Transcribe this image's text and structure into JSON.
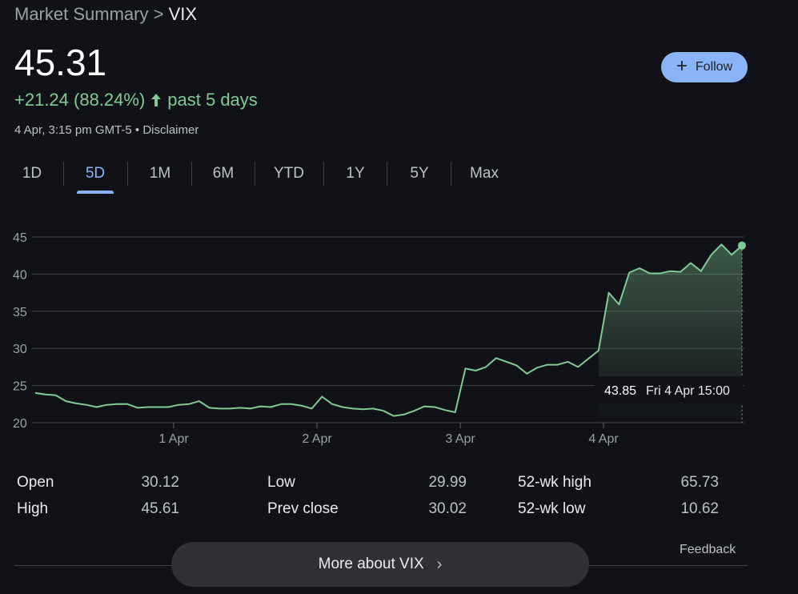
{
  "breadcrumb": {
    "parent": "Market Summary",
    "separator": " > ",
    "current": "VIX"
  },
  "quote": {
    "price": "45.31",
    "change": "+21.24 (88.24%)",
    "period": "past 5 days",
    "timestamp": "4 Apr, 3:15 pm GMT-5",
    "dot": " • ",
    "disclaimer": "Disclaimer"
  },
  "follow_button": {
    "icon": "plus-icon",
    "label": "Follow"
  },
  "tabs": [
    "1D",
    "5D",
    "1M",
    "6M",
    "YTD",
    "1Y",
    "5Y",
    "Max"
  ],
  "active_tab": "5D",
  "colors": {
    "accent": "#8ab4f8",
    "positive": "#81c995",
    "background": "#111217",
    "button_bg": "#303134"
  },
  "chart_data": {
    "type": "area",
    "x_ticks": [
      "1 Apr",
      "2 Apr",
      "3 Apr",
      "4 Apr"
    ],
    "y_ticks": [
      20,
      25,
      30,
      35,
      40,
      45
    ],
    "ylim": [
      20,
      45
    ],
    "grid": true,
    "series": [
      {
        "values": [
          24.0,
          23.8,
          23.7,
          22.9,
          22.6,
          22.4,
          22.1,
          22.4,
          22.5,
          22.5,
          22.0,
          22.1,
          22.1,
          22.1,
          22.4,
          22.5,
          22.9,
          22.0,
          21.9,
          21.9,
          22.0,
          21.9,
          22.2,
          22.1,
          22.5,
          22.5,
          22.3,
          21.9,
          23.5,
          22.5,
          22.1,
          21.9,
          21.8,
          21.9,
          21.6,
          20.9,
          21.1,
          21.6,
          22.2,
          22.1,
          21.7,
          21.4,
          27.3,
          27.0,
          27.5,
          28.7,
          28.2,
          27.7,
          26.6,
          27.4,
          27.8,
          27.8,
          28.2,
          27.5,
          28.6,
          29.7,
          37.5,
          35.9,
          40.2,
          40.8,
          40.1,
          40.1,
          40.4,
          40.3,
          41.5,
          40.4,
          42.6,
          44.0,
          42.6,
          43.85
        ]
      }
    ],
    "tooltip": {
      "value": "43.85",
      "time": "Fri 4 Apr 15:00"
    }
  },
  "stats": [
    {
      "label": "Open",
      "value": "30.12"
    },
    {
      "label": "High",
      "value": "45.61"
    },
    {
      "label": "Low",
      "value": "29.99"
    },
    {
      "label": "Prev close",
      "value": "30.02"
    },
    {
      "label": "52-wk high",
      "value": "65.73"
    },
    {
      "label": "52-wk low",
      "value": "10.62"
    }
  ],
  "feedback": "Feedback",
  "more_button": {
    "label": "More about VIX",
    "icon": "chevron-right-icon"
  }
}
